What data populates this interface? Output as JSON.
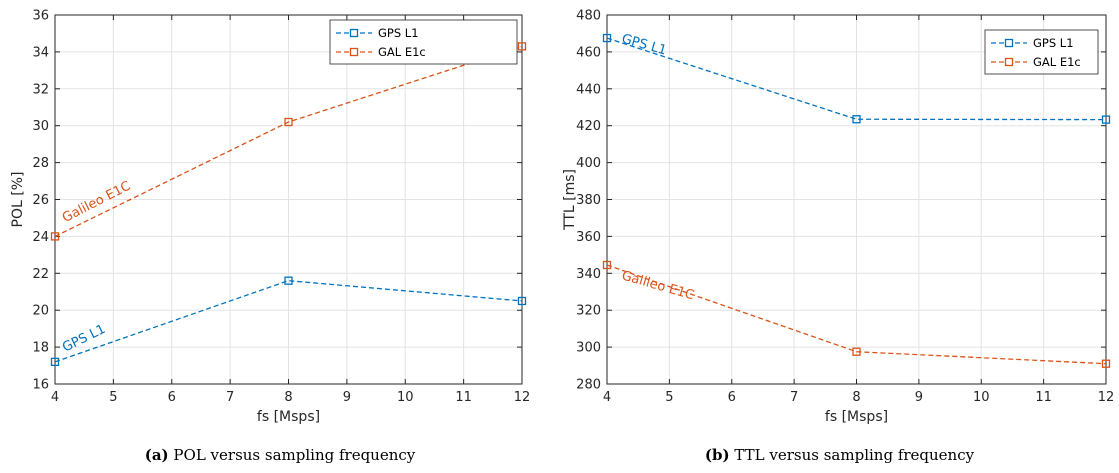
{
  "chart_data": [
    {
      "type": "line",
      "id": "a",
      "x": [
        4,
        8,
        12
      ],
      "series": [
        {
          "name": "GPS L1",
          "values": [
            17.2,
            21.6,
            20.5
          ],
          "color": "#0072BD"
        },
        {
          "name": "GAL E1c",
          "values": [
            24.0,
            30.2,
            34.3
          ],
          "color": "#D95319"
        }
      ],
      "xlabel": "fs [Msps]",
      "ylabel": "POL [%]",
      "xlim": [
        4,
        12
      ],
      "ylim": [
        16,
        36
      ],
      "xticks": [
        "4",
        "5",
        "6",
        "7",
        "8",
        "9",
        "10",
        "11",
        "12"
      ],
      "yticks": [
        "16",
        "18",
        "20",
        "22",
        "24",
        "26",
        "28",
        "30",
        "32",
        "34",
        "36"
      ],
      "grid": true,
      "legend_position": "top-right",
      "annotations": [
        {
          "text": "GPS L1",
          "series": 0
        },
        {
          "text": "Galileo E1C",
          "series": 1
        }
      ],
      "caption_label": "(a)",
      "caption_text": " POL versus sampling frequency"
    },
    {
      "type": "line",
      "id": "b",
      "x": [
        4,
        8,
        12
      ],
      "series": [
        {
          "name": "GPS L1",
          "values": [
            467.5,
            423.5,
            423.3
          ],
          "color": "#0072BD"
        },
        {
          "name": "GAL E1c",
          "values": [
            344.5,
            297.5,
            291.0
          ],
          "color": "#D95319"
        }
      ],
      "xlabel": "fs [Msps]",
      "ylabel": "TTL [ms]",
      "xlim": [
        4,
        12
      ],
      "ylim": [
        280,
        480
      ],
      "xticks": [
        "4",
        "5",
        "6",
        "7",
        "8",
        "9",
        "10",
        "11",
        "12"
      ],
      "yticks": [
        "280",
        "300",
        "320",
        "340",
        "360",
        "380",
        "400",
        "420",
        "440",
        "460",
        "480"
      ],
      "grid": true,
      "legend_position": "top-right",
      "annotations": [
        {
          "text": "GPS L1",
          "series": 0
        },
        {
          "text": "Galileo E1C",
          "series": 1
        }
      ],
      "caption_label": "(b)",
      "caption_text": " TTL versus sampling frequency"
    }
  ]
}
